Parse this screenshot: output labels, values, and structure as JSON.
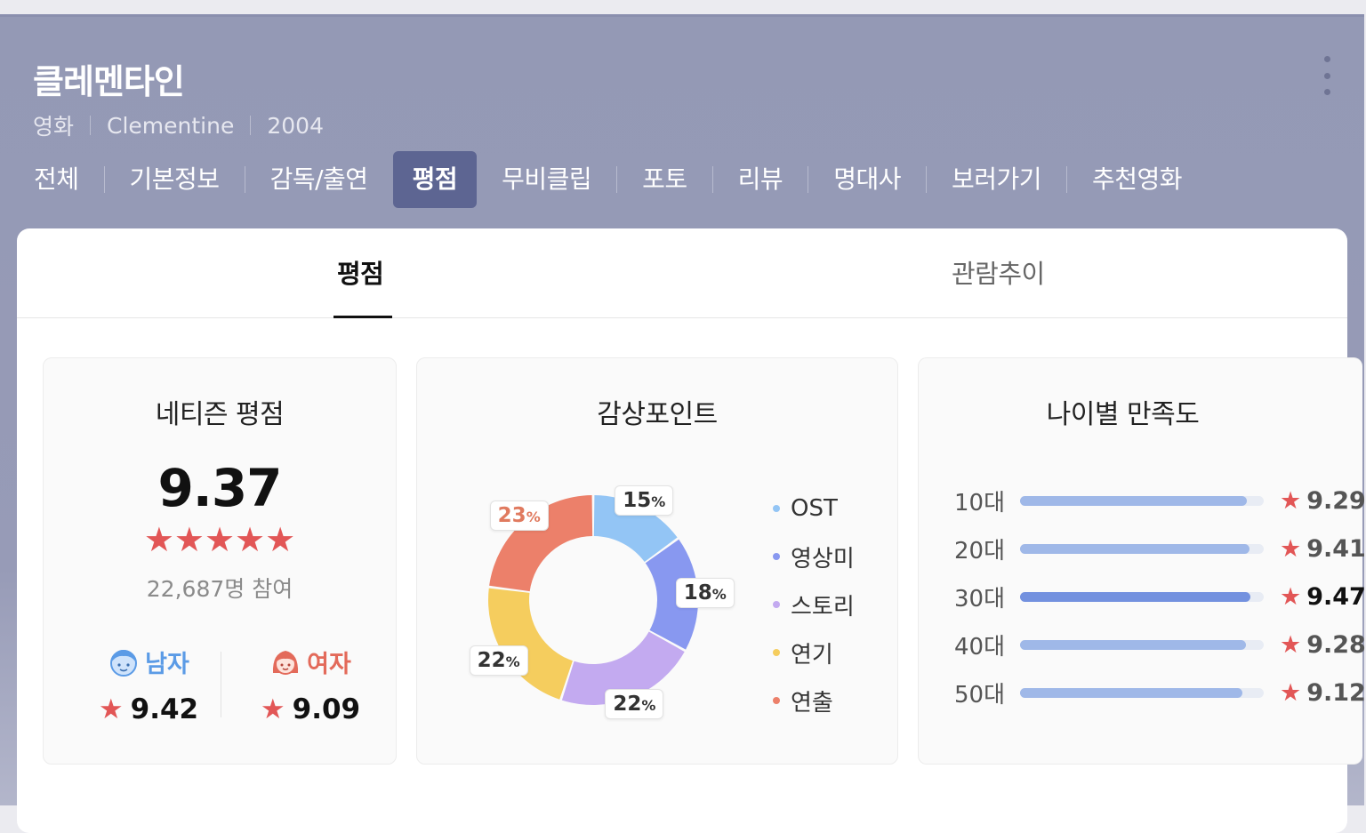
{
  "movie": {
    "title": "클레멘타인",
    "category": "영화",
    "original_title": "Clementine",
    "year": "2004"
  },
  "tabs": [
    {
      "label": "전체"
    },
    {
      "label": "기본정보"
    },
    {
      "label": "감독/출연"
    },
    {
      "label": "평점",
      "active": true
    },
    {
      "label": "무비클립"
    },
    {
      "label": "포토"
    },
    {
      "label": "리뷰"
    },
    {
      "label": "명대사"
    },
    {
      "label": "보러가기"
    },
    {
      "label": "추천영화"
    }
  ],
  "subtabs": {
    "rating": "평점",
    "audience_trend": "관람추이"
  },
  "netizen": {
    "title": "네티즌 평점",
    "score": "9.37",
    "stars": "★★★★★",
    "participants": "22,687명 참여",
    "male_label": "남자",
    "male_score": "9.42",
    "female_label": "여자",
    "female_score": "9.09",
    "star_glyph": "★"
  },
  "viewing_points": {
    "title": "감상포인트",
    "percent_sign": "%",
    "legend": [
      {
        "label": "OST",
        "color": "#93c5f5"
      },
      {
        "label": "영상미",
        "color": "#8898f0"
      },
      {
        "label": "스토리",
        "color": "#c3aaf0"
      },
      {
        "label": "연기",
        "color": "#f5cd5e"
      },
      {
        "label": "연출",
        "color": "#ec806a"
      }
    ]
  },
  "chart_data": {
    "type": "pie",
    "donut": true,
    "categories": [
      "OST",
      "영상미",
      "스토리",
      "연기",
      "연출"
    ],
    "values": [
      15,
      18,
      22,
      22,
      23
    ],
    "unit": "%",
    "highlight": "연출"
  },
  "age": {
    "title": "나이별 만족도",
    "rows": [
      {
        "label": "10대",
        "score": "9.29",
        "value": 9.29
      },
      {
        "label": "20대",
        "score": "9.41",
        "value": 9.41
      },
      {
        "label": "30대",
        "score": "9.47",
        "value": 9.47,
        "best": true
      },
      {
        "label": "40대",
        "score": "9.28",
        "value": 9.28
      },
      {
        "label": "50대",
        "score": "9.12",
        "value": 9.12
      }
    ],
    "max": 10,
    "star_glyph": "★"
  }
}
